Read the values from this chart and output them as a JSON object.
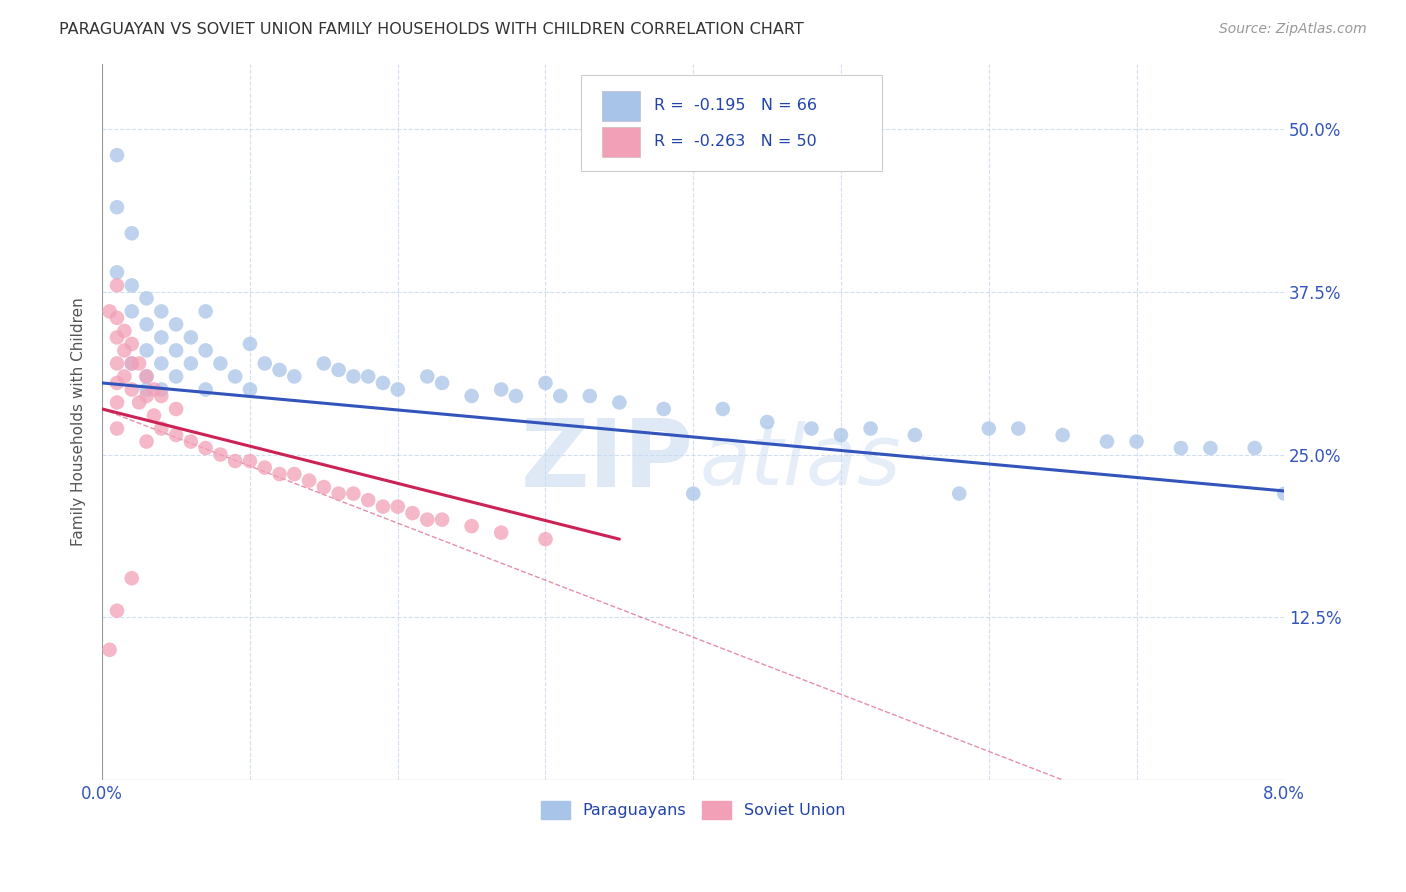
{
  "title": "PARAGUAYAN VS SOVIET UNION FAMILY HOUSEHOLDS WITH CHILDREN CORRELATION CHART",
  "source": "Source: ZipAtlas.com",
  "ylabel": "Family Households with Children",
  "xlim": [
    0.0,
    0.08
  ],
  "ylim": [
    0.0,
    0.55
  ],
  "xticks": [
    0.0,
    0.01,
    0.02,
    0.03,
    0.04,
    0.05,
    0.06,
    0.07,
    0.08
  ],
  "xticklabels": [
    "0.0%",
    "",
    "",
    "",
    "",
    "",
    "",
    "",
    "8.0%"
  ],
  "yticks": [
    0.0,
    0.125,
    0.25,
    0.375,
    0.5
  ],
  "yticklabels": [
    "",
    "12.5%",
    "25.0%",
    "37.5%",
    "50.0%"
  ],
  "legend_label1": "Paraguayans",
  "legend_label2": "Soviet Union",
  "blue_color": "#a8c4e8",
  "pink_color": "#f2a0b8",
  "trend_blue": "#3355bb",
  "trend_pink": "#cc2255",
  "watermark": "ZIPatlas",
  "blue_trend_x0": 0.0,
  "blue_trend_y0": 0.305,
  "blue_trend_x1": 0.08,
  "blue_trend_y1": 0.222,
  "pink_trend_x0": 0.0,
  "pink_trend_y0": 0.285,
  "pink_trend_x1": 0.035,
  "pink_trend_y1": 0.185,
  "dash_line_x0": 0.0,
  "dash_line_y0": 0.285,
  "dash_line_x1": 0.065,
  "dash_line_y1": 0.0,
  "paraguayan_x": [
    0.001,
    0.001,
    0.001,
    0.002,
    0.002,
    0.002,
    0.002,
    0.003,
    0.003,
    0.003,
    0.003,
    0.003,
    0.004,
    0.004,
    0.004,
    0.004,
    0.005,
    0.005,
    0.005,
    0.006,
    0.006,
    0.007,
    0.007,
    0.007,
    0.008,
    0.009,
    0.01,
    0.01,
    0.011,
    0.012,
    0.013,
    0.015,
    0.016,
    0.017,
    0.018,
    0.019,
    0.02,
    0.022,
    0.023,
    0.025,
    0.027,
    0.028,
    0.03,
    0.031,
    0.033,
    0.035,
    0.038,
    0.04,
    0.042,
    0.045,
    0.048,
    0.05,
    0.052,
    0.055,
    0.058,
    0.06,
    0.062,
    0.065,
    0.068,
    0.07,
    0.073,
    0.075,
    0.078,
    0.08
  ],
  "paraguayan_y": [
    0.48,
    0.44,
    0.39,
    0.42,
    0.38,
    0.36,
    0.32,
    0.37,
    0.35,
    0.33,
    0.31,
    0.3,
    0.36,
    0.34,
    0.32,
    0.3,
    0.35,
    0.33,
    0.31,
    0.34,
    0.32,
    0.36,
    0.33,
    0.3,
    0.32,
    0.31,
    0.335,
    0.3,
    0.32,
    0.315,
    0.31,
    0.32,
    0.315,
    0.31,
    0.31,
    0.305,
    0.3,
    0.31,
    0.305,
    0.295,
    0.3,
    0.295,
    0.305,
    0.295,
    0.295,
    0.29,
    0.285,
    0.22,
    0.285,
    0.275,
    0.27,
    0.265,
    0.27,
    0.265,
    0.22,
    0.27,
    0.27,
    0.265,
    0.26,
    0.26,
    0.255,
    0.255,
    0.255,
    0.22
  ],
  "soviet_x": [
    0.0005,
    0.0005,
    0.001,
    0.001,
    0.001,
    0.001,
    0.001,
    0.001,
    0.001,
    0.001,
    0.0015,
    0.0015,
    0.0015,
    0.002,
    0.002,
    0.002,
    0.002,
    0.0025,
    0.0025,
    0.003,
    0.003,
    0.003,
    0.0035,
    0.0035,
    0.004,
    0.004,
    0.005,
    0.005,
    0.006,
    0.007,
    0.008,
    0.009,
    0.01,
    0.011,
    0.012,
    0.013,
    0.014,
    0.015,
    0.016,
    0.017,
    0.018,
    0.019,
    0.02,
    0.021,
    0.022,
    0.023,
    0.025,
    0.027,
    0.03
  ],
  "soviet_y": [
    0.36,
    0.1,
    0.38,
    0.355,
    0.34,
    0.32,
    0.305,
    0.29,
    0.27,
    0.13,
    0.345,
    0.33,
    0.31,
    0.335,
    0.32,
    0.3,
    0.155,
    0.32,
    0.29,
    0.31,
    0.295,
    0.26,
    0.3,
    0.28,
    0.295,
    0.27,
    0.285,
    0.265,
    0.26,
    0.255,
    0.25,
    0.245,
    0.245,
    0.24,
    0.235,
    0.235,
    0.23,
    0.225,
    0.22,
    0.22,
    0.215,
    0.21,
    0.21,
    0.205,
    0.2,
    0.2,
    0.195,
    0.19,
    0.185
  ]
}
